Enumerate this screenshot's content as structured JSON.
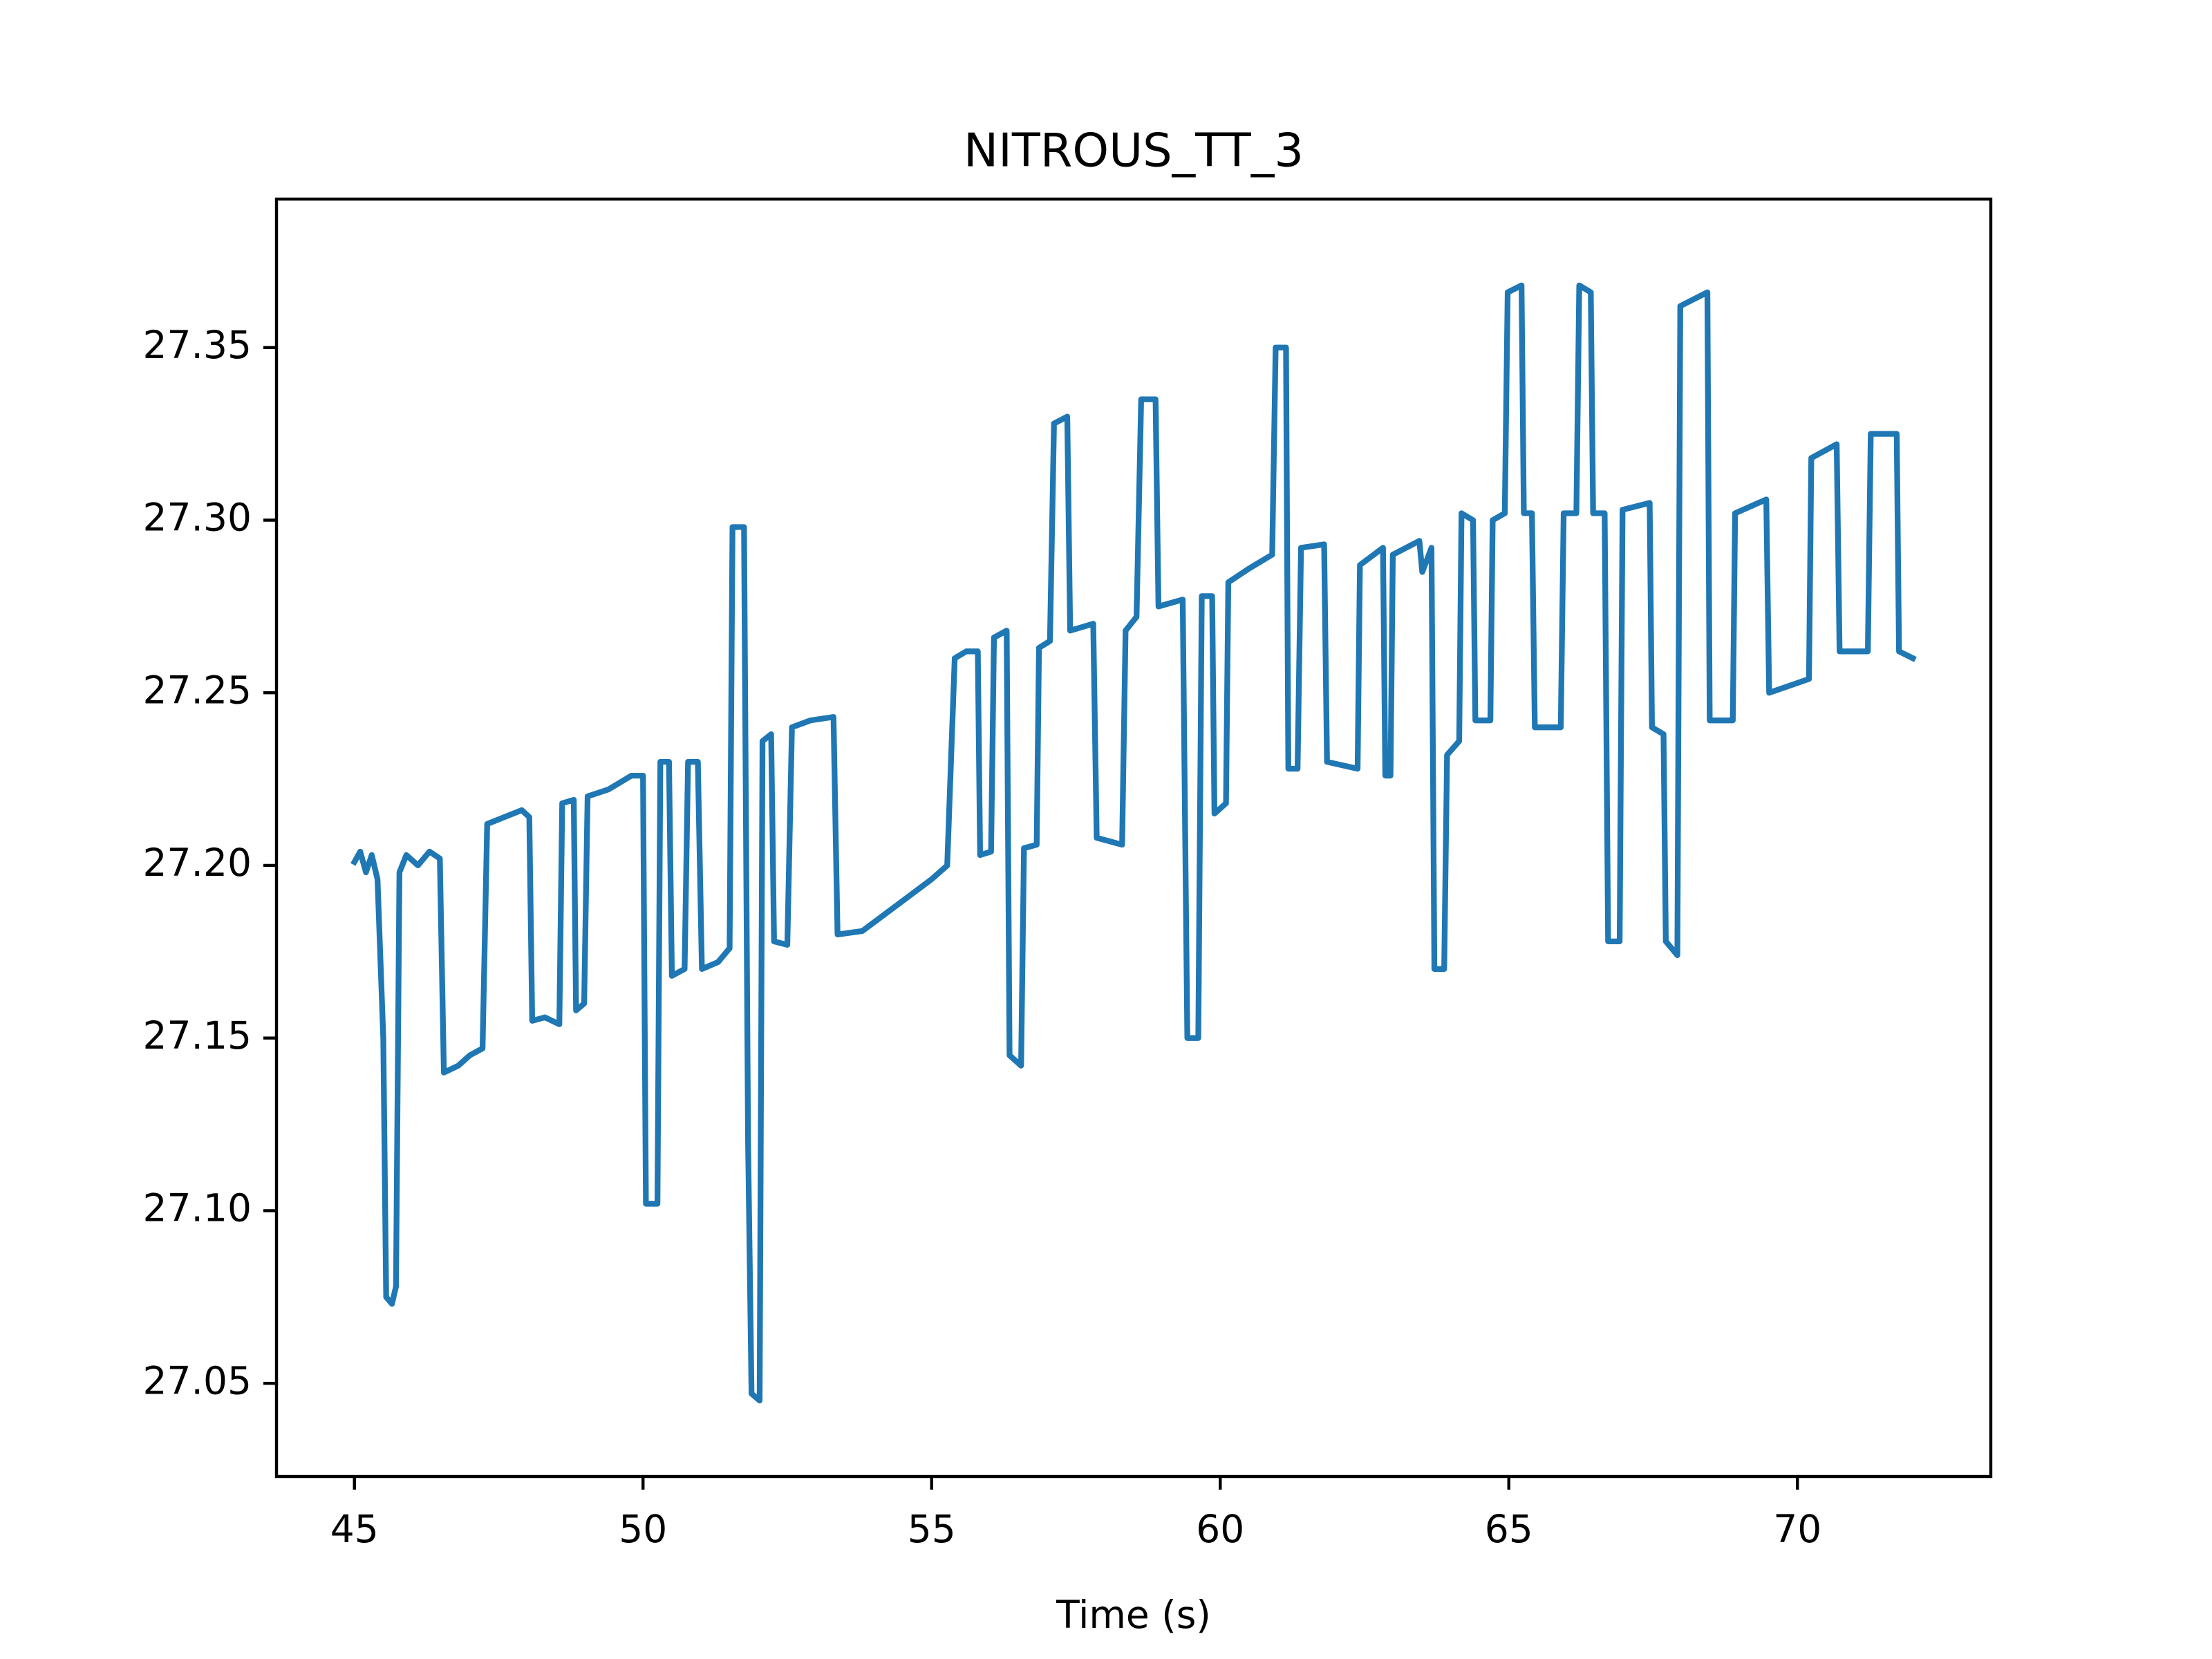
{
  "chart_data": {
    "type": "line",
    "title": "NITROUS_TT_3",
    "x_label": "Time (s)",
    "color": "#1f77b4",
    "xlim": [
      43.65,
      73.35
    ],
    "ylim": [
      27.023,
      27.393
    ],
    "xticks": [
      45,
      50,
      55,
      60,
      65,
      70
    ],
    "yticks": [
      27.05,
      {
        "value": 27.1,
        "label": "27.10"
      },
      27.15,
      {
        "value": 27.2,
        "label": "27.20"
      },
      27.25,
      {
        "value": 27.3,
        "label": "27.30"
      },
      27.35
    ],
    "x": [
      45.0,
      45.1,
      45.2,
      45.3,
      45.4,
      45.5,
      45.55,
      45.65,
      45.72,
      45.78,
      45.9,
      46.1,
      46.3,
      46.48,
      46.55,
      46.8,
      47.0,
      47.22,
      47.3,
      47.6,
      47.9,
      48.03,
      48.08,
      48.3,
      48.55,
      48.6,
      48.8,
      48.84,
      48.98,
      49.04,
      49.4,
      49.8,
      50.0,
      50.05,
      50.25,
      50.3,
      50.45,
      50.5,
      50.72,
      50.78,
      50.95,
      51.02,
      51.3,
      51.5,
      51.55,
      51.75,
      51.82,
      51.88,
      52.02,
      52.07,
      52.22,
      52.27,
      52.5,
      52.58,
      52.9,
      53.3,
      53.37,
      53.8,
      54.2,
      54.6,
      55.0,
      55.27,
      55.4,
      55.6,
      55.8,
      55.84,
      56.03,
      56.08,
      56.3,
      56.35,
      56.55,
      56.6,
      56.82,
      56.86,
      57.05,
      57.12,
      57.35,
      57.4,
      57.8,
      57.86,
      58.3,
      58.36,
      58.55,
      58.63,
      58.88,
      58.93,
      59.35,
      59.43,
      59.62,
      59.68,
      59.86,
      59.9,
      60.1,
      60.14,
      60.5,
      60.9,
      60.96,
      61.14,
      61.18,
      61.34,
      61.4,
      61.8,
      61.85,
      62.38,
      62.42,
      62.82,
      62.86,
      62.95,
      62.99,
      63.45,
      63.5,
      63.66,
      63.71,
      63.88,
      63.93,
      64.14,
      64.18,
      64.38,
      64.42,
      64.68,
      64.72,
      64.93,
      64.98,
      65.22,
      65.26,
      65.4,
      65.45,
      65.9,
      65.95,
      66.17,
      66.22,
      66.42,
      66.46,
      66.66,
      66.72,
      66.92,
      66.97,
      67.44,
      67.48,
      67.68,
      67.72,
      67.92,
      67.97,
      68.44,
      68.48,
      68.88,
      68.92,
      69.46,
      69.51,
      70.2,
      70.24,
      70.68,
      70.73,
      71.22,
      71.27,
      71.72,
      71.76,
      72.0
    ],
    "values": [
      27.201,
      27.204,
      27.198,
      27.203,
      27.196,
      27.15,
      27.075,
      27.073,
      27.078,
      27.198,
      27.203,
      27.2,
      27.204,
      27.202,
      27.14,
      27.142,
      27.145,
      27.147,
      27.212,
      27.214,
      27.216,
      27.214,
      27.155,
      27.156,
      27.154,
      27.218,
      27.219,
      27.158,
      27.16,
      27.22,
      27.222,
      27.226,
      27.226,
      27.102,
      27.102,
      27.23,
      27.23,
      27.168,
      27.17,
      27.23,
      27.23,
      27.17,
      27.172,
      27.176,
      27.298,
      27.298,
      27.12,
      27.047,
      27.045,
      27.236,
      27.238,
      27.178,
      27.177,
      27.24,
      27.242,
      27.243,
      27.18,
      27.181,
      27.186,
      27.191,
      27.196,
      27.2,
      27.26,
      27.262,
      27.262,
      27.203,
      27.204,
      27.266,
      27.268,
      27.145,
      27.142,
      27.205,
      27.206,
      27.263,
      27.265,
      27.328,
      27.33,
      27.268,
      27.27,
      27.208,
      27.206,
      27.268,
      27.272,
      27.335,
      27.335,
      27.275,
      27.277,
      27.15,
      27.15,
      27.278,
      27.278,
      27.215,
      27.218,
      27.282,
      27.286,
      27.29,
      27.35,
      27.35,
      27.228,
      27.228,
      27.292,
      27.293,
      27.23,
      27.228,
      27.287,
      27.292,
      27.226,
      27.226,
      27.29,
      27.294,
      27.285,
      27.292,
      27.17,
      27.17,
      27.232,
      27.236,
      27.302,
      27.3,
      27.242,
      27.242,
      27.3,
      27.302,
      27.366,
      27.368,
      27.302,
      27.302,
      27.24,
      27.24,
      27.302,
      27.302,
      27.368,
      27.366,
      27.302,
      27.302,
      27.178,
      27.178,
      27.303,
      27.305,
      27.24,
      27.238,
      27.178,
      27.174,
      27.362,
      27.366,
      27.242,
      27.242,
      27.302,
      27.306,
      27.25,
      27.254,
      27.318,
      27.322,
      27.262,
      27.262,
      27.325,
      27.325,
      27.262,
      27.26
    ]
  }
}
